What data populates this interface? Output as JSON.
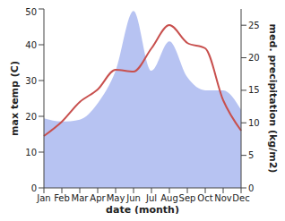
{
  "chart_data": {
    "type": "line",
    "x_label": "date (month)",
    "y_label": "max temp (C)",
    "y2_label": "med. precipitation (kg/m2)",
    "categories": [
      "Jan",
      "Feb",
      "Mar",
      "Apr",
      "May",
      "Jun",
      "Jul",
      "Aug",
      "Sep",
      "Oct",
      "Nov",
      "Dec"
    ],
    "series": [
      {
        "type": "area",
        "axis": "y2",
        "color": "#aab8f0",
        "values": [
          10.7,
          10.2,
          10.5,
          13,
          18,
          27.2,
          18,
          22.5,
          17,
          15,
          15,
          12
        ]
      },
      {
        "type": "line",
        "color": "#c8504e",
        "values": [
          14.5,
          18.5,
          24,
          27.5,
          33,
          32.5,
          39,
          45.5,
          40.5,
          39,
          24.5,
          16
        ]
      }
    ],
    "ylim": [
      0,
      50
    ],
    "yticks": [
      0,
      10,
      20,
      30,
      40,
      50
    ],
    "y2lim": [
      0,
      27.5
    ],
    "y2ticks": [
      0,
      5,
      10,
      15,
      20,
      25
    ],
    "grid": false
  }
}
